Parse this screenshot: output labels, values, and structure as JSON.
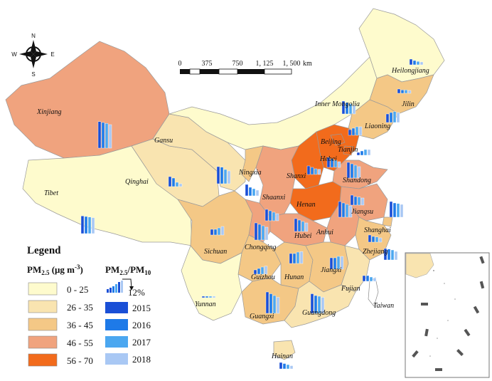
{
  "compass": {
    "n": "N",
    "s": "S",
    "e": "E",
    "w": "W"
  },
  "scale_bar": {
    "ticks": [
      "0",
      "375",
      "750",
      "1, 125",
      "1, 500"
    ],
    "unit": "km"
  },
  "legend": {
    "title": "Legend",
    "pm25_head": "PM",
    "pm25_sub": "2.5",
    "pm25_unit": " (μg m",
    "pm25_unit_sup": "-3",
    "pm25_unit_end": ")",
    "ratio_head_a": "PM",
    "ratio_sub_a": "2.5",
    "ratio_slash": "/PM",
    "ratio_sub_b": "10",
    "ratio_example": "12%",
    "pm25_classes": [
      {
        "label": "0 - 25",
        "color": "#fefbcd"
      },
      {
        "label": "26 - 35",
        "color": "#f9e4b0"
      },
      {
        "label": "36 - 45",
        "color": "#f4c886"
      },
      {
        "label": "46 - 55",
        "color": "#f0a37e"
      },
      {
        "label": "56 - 70",
        "color": "#f26b1c"
      }
    ],
    "years": [
      {
        "label": "2015",
        "color": "#1a4fd6"
      },
      {
        "label": "2016",
        "color": "#1e7ae8"
      },
      {
        "label": "2017",
        "color": "#4ba7f0"
      },
      {
        "label": "2018",
        "color": "#a9c8f4"
      }
    ]
  },
  "provinces": [
    {
      "name": "Xinjiang",
      "bars": [
        0.62,
        0.6,
        0.58,
        0.55
      ]
    },
    {
      "name": "Tibet",
      "bars": [
        0.62,
        0.6,
        0.58,
        0.56
      ]
    },
    {
      "name": "Qinghai",
      "bars": [
        0.35,
        0.3,
        0.15,
        0.1
      ]
    },
    {
      "name": "Gansu",
      "bars": [
        0.6,
        0.58,
        0.5,
        0.45
      ]
    },
    {
      "name": "Ningxia",
      "bars": [
        0.4,
        0.3,
        0.25,
        0.2
      ]
    },
    {
      "name": "Inner Mongolia",
      "bars": [
        0.45,
        0.4,
        0.35,
        0.3
      ]
    },
    {
      "name": "Heilongjiang",
      "bars": [
        0.2,
        0.15,
        0.12,
        0.1
      ]
    },
    {
      "name": "Jilin",
      "bars": [
        0.15,
        0.12,
        0.12,
        0.1
      ]
    },
    {
      "name": "Liaoning",
      "bars": [
        0.3,
        0.35,
        0.38,
        0.35
      ]
    },
    {
      "name": "Beijing",
      "bars": [
        0.2,
        0.25,
        0.3,
        0.3
      ]
    },
    {
      "name": "Tianjin",
      "bars": [
        0.1,
        0.15,
        0.2,
        0.2
      ]
    },
    {
      "name": "Hebei",
      "bars": [
        0.35,
        0.3,
        0.25,
        0.2
      ]
    },
    {
      "name": "Shanxi",
      "bars": [
        0.3,
        0.25,
        0.2,
        0.18
      ]
    },
    {
      "name": "Shandong",
      "bars": [
        0.55,
        0.5,
        0.45,
        0.4
      ]
    },
    {
      "name": "Shaanxi",
      "bars": [
        0.4,
        0.35,
        0.3,
        0.25
      ]
    },
    {
      "name": "Henan",
      "bars": [
        0.55,
        0.5,
        0.45,
        0.4
      ]
    },
    {
      "name": "Jiangsu",
      "bars": [
        0.35,
        0.3,
        0.28,
        0.25
      ]
    },
    {
      "name": "Anhui",
      "bars": [
        0.55,
        0.5,
        0.48,
        0.45
      ]
    },
    {
      "name": "Shanghai",
      "bars": [
        0.25,
        0.2,
        0.18,
        0.15
      ]
    },
    {
      "name": "Hubei",
      "bars": [
        0.45,
        0.4,
        0.35,
        0.3
      ]
    },
    {
      "name": "Chongqing",
      "bars": [
        0.6,
        0.55,
        0.5,
        0.45
      ]
    },
    {
      "name": "Sichuan",
      "bars": [
        0.2,
        0.2,
        0.25,
        0.3
      ]
    },
    {
      "name": "Zhejiang",
      "bars": [
        0.4,
        0.38,
        0.35,
        0.3
      ]
    },
    {
      "name": "Hunan",
      "bars": [
        0.35,
        0.35,
        0.4,
        0.42
      ]
    },
    {
      "name": "Jiangxi",
      "bars": [
        0.4,
        0.4,
        0.45,
        0.45
      ]
    },
    {
      "name": "Fujian",
      "bars": [
        0.2,
        0.2,
        0.15,
        0.12
      ]
    },
    {
      "name": "Guizhou",
      "bars": [
        0.15,
        0.2,
        0.25,
        0.28
      ]
    },
    {
      "name": "Yunnan",
      "bars": [
        0.05,
        0.05,
        0.05,
        0.05
      ]
    },
    {
      "name": "Guangxi",
      "bars": [
        0.6,
        0.55,
        0.5,
        0.45
      ]
    },
    {
      "name": "Guangdong",
      "bars": [
        0.55,
        0.5,
        0.48,
        0.45
      ]
    },
    {
      "name": "Hainan",
      "bars": [
        0.3,
        0.25,
        0.2,
        0.15
      ]
    },
    {
      "name": "Taiwan",
      "bars": []
    }
  ]
}
